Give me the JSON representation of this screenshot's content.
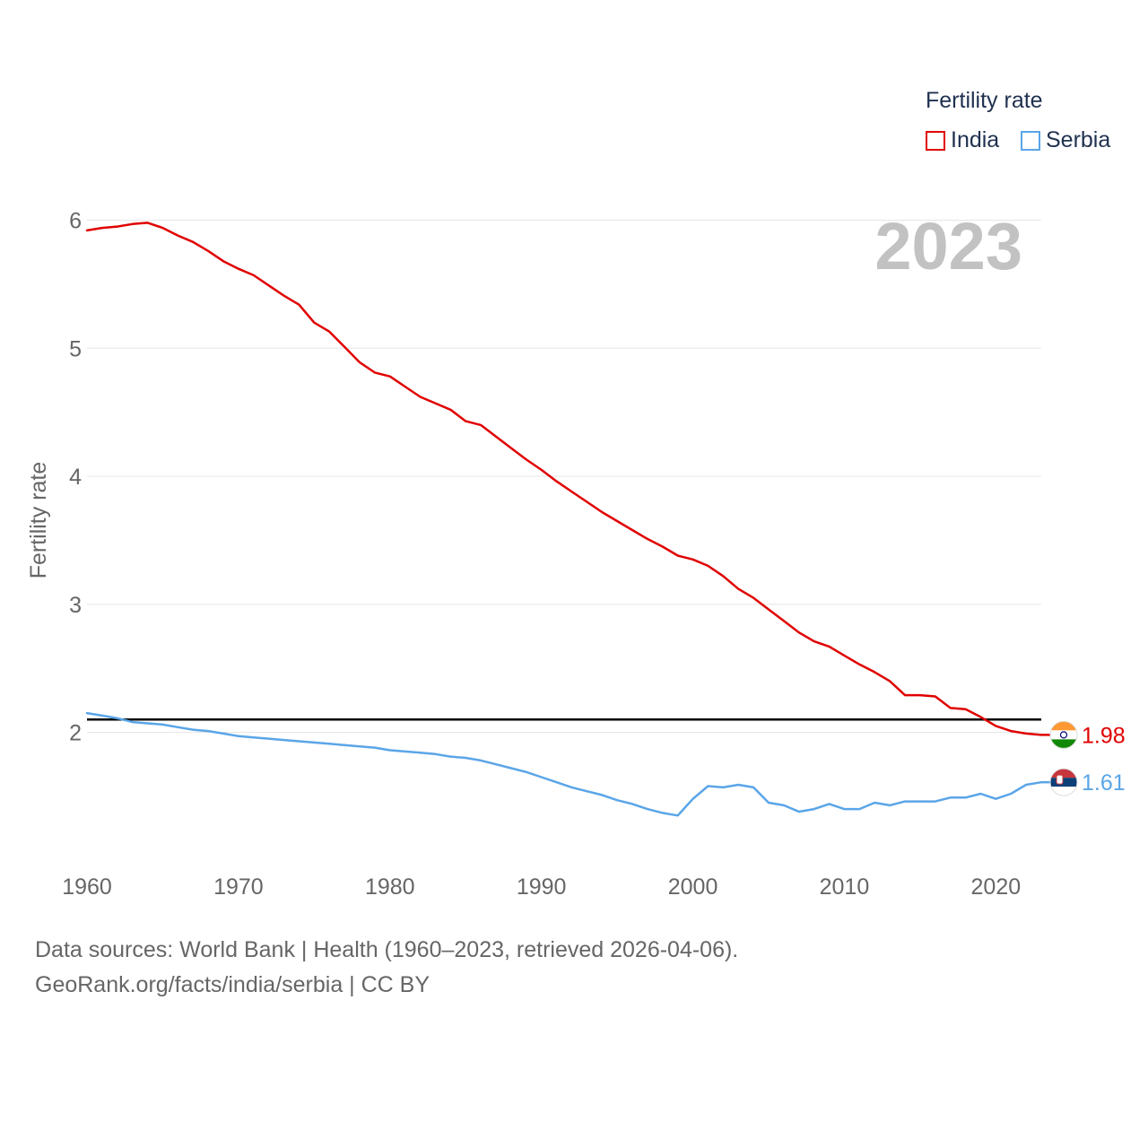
{
  "legend": {
    "title": "Fertility rate"
  },
  "source": {
    "line1": "Data sources: World Bank | Health (1960–2023, retrieved 2026-04-06).",
    "line2": "GeoRank.org/facts/india/serbia | CC BY"
  },
  "chart_data": {
    "type": "line",
    "title": "",
    "year_label": "2023",
    "xlabel": "",
    "ylabel": "Fertility rate",
    "xlim": [
      1960,
      2023
    ],
    "ylim": [
      1.0,
      6.5
    ],
    "x_ticks": [
      1960,
      1970,
      1980,
      1990,
      2000,
      2010,
      2020
    ],
    "y_ticks": [
      2,
      3,
      4,
      5,
      6
    ],
    "grid": true,
    "legend_position": "top-right",
    "reference_line": {
      "y": 2.1,
      "color": "#000000"
    },
    "x": [
      1960,
      1961,
      1962,
      1963,
      1964,
      1965,
      1966,
      1967,
      1968,
      1969,
      1970,
      1971,
      1972,
      1973,
      1974,
      1975,
      1976,
      1977,
      1978,
      1979,
      1980,
      1981,
      1982,
      1983,
      1984,
      1985,
      1986,
      1987,
      1988,
      1989,
      1990,
      1991,
      1992,
      1993,
      1994,
      1995,
      1996,
      1997,
      1998,
      1999,
      2000,
      2001,
      2002,
      2003,
      2004,
      2005,
      2006,
      2007,
      2008,
      2009,
      2010,
      2011,
      2012,
      2013,
      2014,
      2015,
      2016,
      2017,
      2018,
      2019,
      2020,
      2021,
      2022,
      2023
    ],
    "series": [
      {
        "name": "India",
        "color": "#e00000",
        "end_label": "1.98",
        "flag": "india-flag",
        "values": [
          5.92,
          5.94,
          5.95,
          5.97,
          5.98,
          5.94,
          5.88,
          5.83,
          5.76,
          5.68,
          5.62,
          5.57,
          5.49,
          5.41,
          5.34,
          5.2,
          5.13,
          5.01,
          4.89,
          4.81,
          4.78,
          4.7,
          4.62,
          4.57,
          4.52,
          4.43,
          4.4,
          4.31,
          4.22,
          4.13,
          4.05,
          3.96,
          3.88,
          3.8,
          3.72,
          3.65,
          3.58,
          3.51,
          3.45,
          3.38,
          3.35,
          3.3,
          3.22,
          3.12,
          3.05,
          2.96,
          2.87,
          2.78,
          2.71,
          2.67,
          2.6,
          2.53,
          2.47,
          2.4,
          2.29,
          2.29,
          2.28,
          2.19,
          2.18,
          2.12,
          2.05,
          2.01,
          1.99,
          1.98
        ]
      },
      {
        "name": "Serbia",
        "color": "#5aa5e8",
        "end_label": "1.61",
        "flag": "serbia-flag",
        "values": [
          2.15,
          2.13,
          2.11,
          2.08,
          2.07,
          2.06,
          2.04,
          2.02,
          2.01,
          1.99,
          1.97,
          1.96,
          1.95,
          1.94,
          1.93,
          1.92,
          1.91,
          1.9,
          1.89,
          1.88,
          1.86,
          1.85,
          1.84,
          1.83,
          1.81,
          1.8,
          1.78,
          1.75,
          1.72,
          1.69,
          1.65,
          1.61,
          1.57,
          1.54,
          1.51,
          1.47,
          1.44,
          1.4,
          1.37,
          1.35,
          1.48,
          1.58,
          1.57,
          1.59,
          1.57,
          1.45,
          1.43,
          1.38,
          1.4,
          1.44,
          1.4,
          1.4,
          1.45,
          1.43,
          1.46,
          1.46,
          1.46,
          1.49,
          1.49,
          1.52,
          1.48,
          1.52,
          1.59,
          1.61
        ]
      }
    ]
  }
}
